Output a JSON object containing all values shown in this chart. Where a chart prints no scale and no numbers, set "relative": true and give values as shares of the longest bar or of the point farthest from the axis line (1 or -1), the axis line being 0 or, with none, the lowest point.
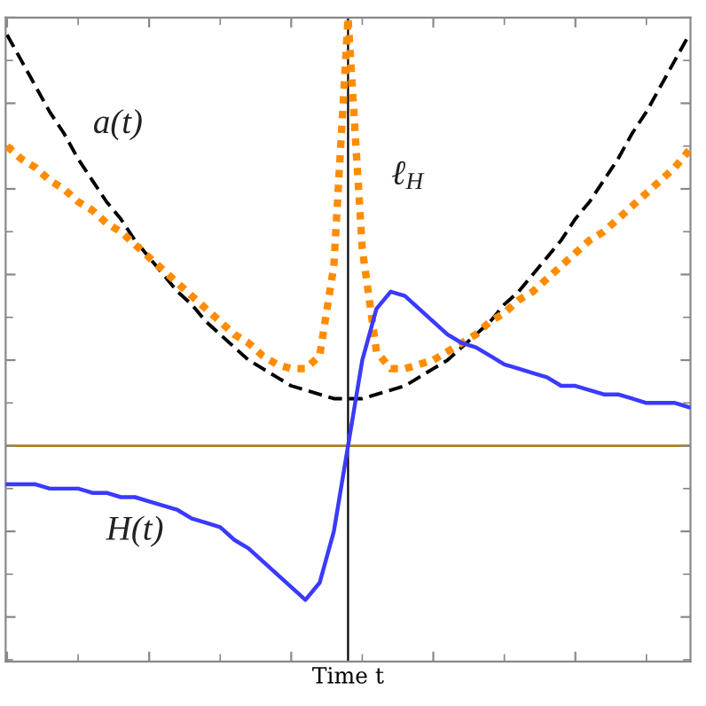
{
  "chart_data": {
    "type": "line",
    "relative": true,
    "xlabel": "Time t",
    "tick_labels": false,
    "categories": [
      null,
      null,
      null,
      null,
      null,
      null,
      null,
      null,
      null,
      null,
      null,
      null,
      null,
      null,
      null,
      null,
      null,
      null,
      null,
      null,
      null,
      null,
      null,
      null,
      null,
      null,
      null,
      null,
      null,
      null,
      null,
      null,
      null,
      null,
      null,
      null,
      null,
      null,
      null,
      null,
      null,
      null,
      null,
      null,
      null,
      null,
      null,
      null,
      null
    ],
    "series": [
      {
        "name": "a(t)",
        "color": "#000000",
        "line_style": "dashed",
        "values": [
          0.96,
          0.9,
          0.84,
          0.78,
          0.73,
          0.67,
          0.62,
          0.57,
          0.53,
          0.48,
          0.44,
          0.4,
          0.36,
          0.33,
          0.29,
          0.26,
          0.23,
          0.2,
          0.18,
          0.16,
          0.14,
          0.13,
          0.12,
          0.11,
          0.11,
          0.11,
          0.12,
          0.13,
          0.14,
          0.16,
          0.18,
          0.2,
          0.23,
          0.26,
          0.29,
          0.33,
          0.36,
          0.4,
          0.44,
          0.48,
          0.53,
          0.57,
          0.62,
          0.67,
          0.73,
          0.78,
          0.84,
          0.9,
          0.96
        ]
      },
      {
        "name": "ℓ$_{H}$",
        "color": "#ff8c00",
        "line_style": "dotted",
        "values": [
          0.7,
          0.67,
          0.65,
          0.62,
          0.6,
          0.57,
          0.55,
          0.52,
          0.5,
          0.47,
          0.44,
          0.41,
          0.38,
          0.35,
          0.32,
          0.29,
          0.26,
          0.24,
          0.21,
          0.19,
          0.18,
          0.18,
          0.21,
          0.42,
          1.0,
          0.46,
          0.22,
          0.18,
          0.18,
          0.19,
          0.2,
          0.22,
          0.24,
          0.26,
          0.29,
          0.31,
          0.34,
          0.36,
          0.39,
          0.42,
          0.45,
          0.48,
          0.5,
          0.53,
          0.56,
          0.59,
          0.62,
          0.65,
          0.69
        ]
      },
      {
        "name": "H(t)",
        "color": "#3a3aff",
        "line_style": "solid",
        "values": [
          -0.09,
          -0.09,
          -0.09,
          -0.1,
          -0.1,
          -0.1,
          -0.11,
          -0.11,
          -0.12,
          -0.12,
          -0.13,
          -0.14,
          -0.15,
          -0.17,
          -0.18,
          -0.19,
          -0.22,
          -0.24,
          -0.27,
          -0.3,
          -0.33,
          -0.36,
          -0.32,
          -0.2,
          0,
          0.2,
          0.32,
          0.36,
          0.35,
          0.32,
          0.29,
          0.26,
          0.24,
          0.23,
          0.21,
          0.19,
          0.18,
          0.17,
          0.16,
          0.14,
          0.14,
          0.13,
          0.12,
          0.12,
          0.11,
          0.1,
          0.1,
          0.1,
          0.09
        ]
      }
    ],
    "ref_lines": [
      {
        "axis": "y",
        "value": 0,
        "color": "#b07d1a"
      }
    ]
  }
}
